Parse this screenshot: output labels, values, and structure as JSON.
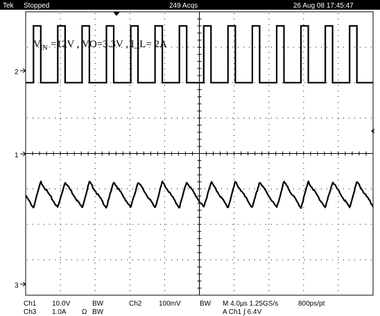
{
  "header": {
    "brand": "Tek",
    "status": "Stopped",
    "acqs": "249 Acqs",
    "timestamp": "26 Aug 08 17:45:47"
  },
  "annotation": {
    "v": "V",
    "in_sub": "IN",
    "rest": "=12V , VO=3.3V ,   I_L= 2A"
  },
  "markers": {
    "ch2": "2",
    "ch1": "1",
    "ch3": "3"
  },
  "footer": {
    "ch1_name": "Ch1",
    "ch1_scale": "10.0V",
    "ch1_bw": "BW",
    "ch2_name": "Ch2",
    "ch2_scale": "100mV",
    "ch2_bw": "BW",
    "ch3_name": "Ch3",
    "ch3_scale": "1.0A",
    "ch3_ohm": "Ω",
    "ch3_bw": "BW",
    "timebase": "M 4.0µs 1.25GS/s",
    "resolution": "800ps/pt",
    "trigger": "A  Ch1  ∫  6.4V"
  },
  "colors": {
    "trace": "#000000",
    "grid": "#000000",
    "topbar": "#000000",
    "background": "#ffffff"
  },
  "chart_data": {
    "type": "line",
    "grid": true,
    "x_divisions": 10,
    "y_divisions": 8,
    "time_per_div_us": 4.0,
    "series": [
      {
        "channel": "Ch2",
        "kind": "triangle-ripple",
        "scale_per_div": "100mV",
        "ground_level_div": 5,
        "period_us": 2.8,
        "amplitude_div": 0.25
      },
      {
        "channel": "Ch1",
        "kind": "pulse",
        "scale_per_div": "10.0V",
        "ground_level_div": 2,
        "period_us": 2.8,
        "high_div": 1.6,
        "duty": 0.3
      },
      {
        "channel": "Ch3",
        "kind": "triangle",
        "scale_per_div": "1.0A",
        "ground_level_div": -3,
        "period_us": 2.8,
        "min_div": -1.53,
        "max_div": -0.8
      }
    ]
  }
}
